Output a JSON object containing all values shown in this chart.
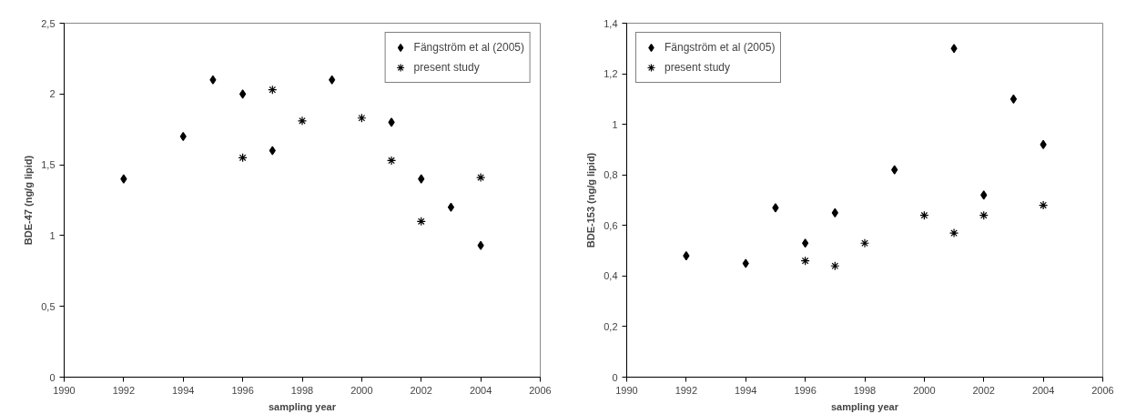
{
  "chart_data": [
    {
      "type": "scatter",
      "xlabel": "sampling year",
      "ylabel": "BDE-47 (ng/g lipid)",
      "xlim": [
        1990,
        2006
      ],
      "xticks": [
        1990,
        1992,
        1994,
        1996,
        1998,
        2000,
        2002,
        2004,
        2006
      ],
      "ylim": [
        0,
        2.5
      ],
      "yticks": [
        0,
        {
          "value": 0.5,
          "label": "0,5"
        },
        1,
        {
          "value": 1.5,
          "label": "1,5"
        },
        2,
        {
          "value": 2.5,
          "label": "2,5"
        }
      ],
      "grid": false,
      "legend": "top right",
      "series": [
        {
          "name": "Fängström et al (2005)",
          "color": "#000000",
          "marker": "diamond",
          "x": [
            1992,
            1994,
            1995,
            1996,
            1997,
            1999,
            2001,
            2002,
            2003,
            2004
          ],
          "values": [
            1.4,
            1.7,
            2.1,
            2.0,
            1.6,
            2.1,
            1.8,
            1.4,
            1.2,
            0.93
          ]
        },
        {
          "name": "present study",
          "color": "#000000",
          "marker": "cross",
          "x": [
            1996,
            1997,
            1998,
            2000,
            2001,
            2002,
            2004
          ],
          "values": [
            1.55,
            2.03,
            1.81,
            1.83,
            1.53,
            1.1,
            1.41
          ]
        }
      ]
    },
    {
      "type": "scatter",
      "xlabel": "sampling year",
      "ylabel": "BDE-153 (ng/g lipid)",
      "xlim": [
        1990,
        2006
      ],
      "xticks": [
        1990,
        1992,
        1994,
        1996,
        1998,
        2000,
        2002,
        2004,
        2006
      ],
      "ylim": [
        0,
        1.4
      ],
      "yticks": [
        0,
        {
          "value": 0.2,
          "label": "0,2"
        },
        {
          "value": 0.4,
          "label": "0,4"
        },
        {
          "value": 0.6,
          "label": "0,6"
        },
        {
          "value": 0.8,
          "label": "0,8"
        },
        1,
        {
          "value": 1.2,
          "label": "1,2"
        },
        {
          "value": 1.4,
          "label": "1,4"
        }
      ],
      "grid": false,
      "legend": "top left",
      "series": [
        {
          "name": "Fängström et al (2005)",
          "color": "#000000",
          "marker": "diamond",
          "x": [
            1992,
            1994,
            1995,
            1996,
            1997,
            1999,
            2001,
            2002,
            2003,
            2004
          ],
          "values": [
            0.48,
            0.45,
            0.67,
            0.53,
            0.65,
            0.82,
            1.3,
            0.72,
            1.1,
            0.92
          ]
        },
        {
          "name": "present study",
          "color": "#000000",
          "marker": "cross",
          "x": [
            1996,
            1997,
            1998,
            2000,
            2001,
            2002,
            2004
          ],
          "values": [
            0.46,
            0.44,
            0.53,
            0.64,
            0.57,
            0.64,
            0.68
          ]
        }
      ]
    }
  ]
}
